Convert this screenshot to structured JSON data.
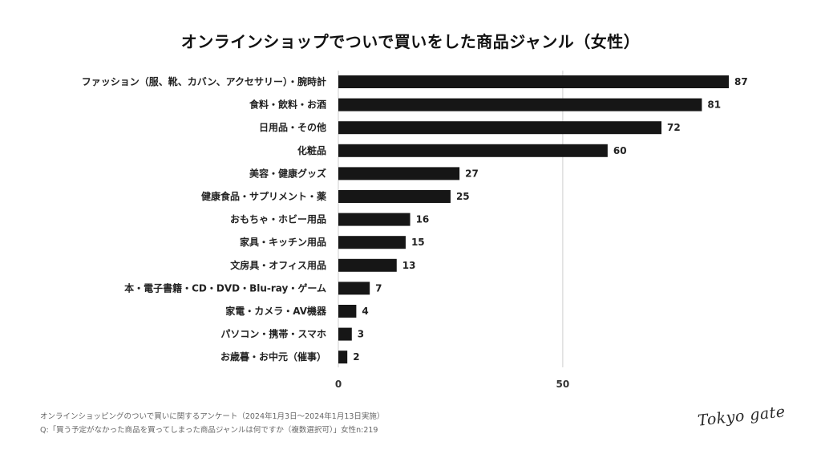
{
  "chart_data": {
    "type": "bar",
    "orientation": "horizontal",
    "title": "オンラインショップでついで買いをした商品ジャンル（女性）",
    "categories": [
      "ファッション（服、靴、カバン、アクセサリー）・腕時計",
      "食料・飲料・お酒",
      "日用品・その他",
      "化粧品",
      "美容・健康グッズ",
      "健康食品・サプリメント・薬",
      "おもちゃ・ホビー用品",
      "家具・キッチン用品",
      "文房具・オフィス用品",
      "本・電子書籍・CD・DVD・Blu-ray・ゲーム",
      "家電・カメラ・AV機器",
      "パソコン・携帯・スマホ",
      "お歳暮・お中元（催事）"
    ],
    "values": [
      87,
      81,
      72,
      60,
      27,
      25,
      16,
      15,
      13,
      7,
      4,
      3,
      2
    ],
    "xticks": [
      0,
      50
    ],
    "xlim": [
      0,
      87
    ],
    "xlabel": "",
    "ylabel": "",
    "bar_color": "#161616",
    "grid_color": "#cfcfcf",
    "grid": true
  },
  "footer": {
    "line1": "オンラインショッピングのついで買いに関するアンケート（2024年1月3日〜2024年1月13日実施）",
    "line2": "Q:「買う予定がなかった商品を買ってしまった商品ジャンルは何ですか（複数選択可）」女性n:219"
  },
  "brand": "Tokyo gate"
}
